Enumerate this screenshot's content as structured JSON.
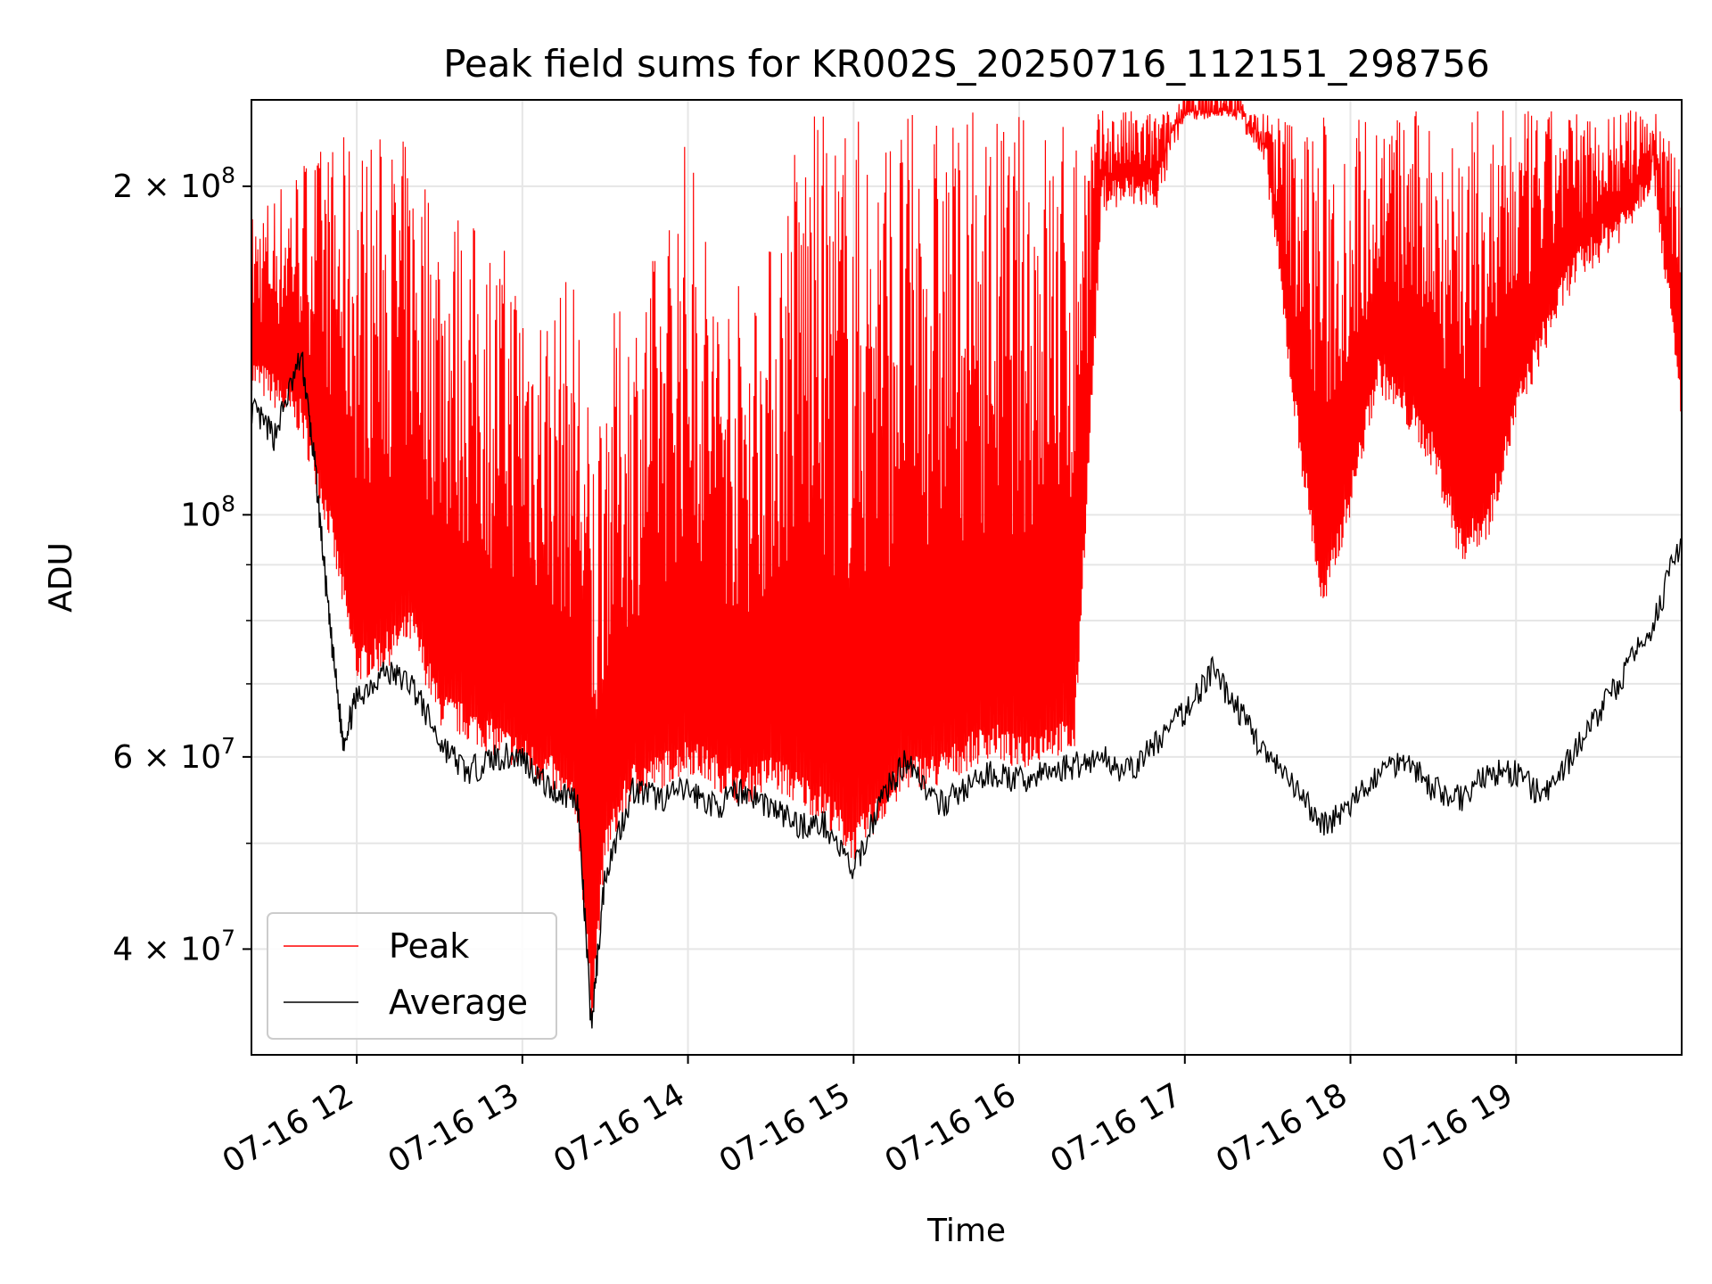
{
  "chart_data": {
    "type": "line",
    "title": "Peak field sums for KR002S_20250716_112151_298756",
    "xlabel": "Time",
    "ylabel": "ADU",
    "y_scale": "log",
    "grid": true,
    "legend_position": "lower-left",
    "xlim": [
      "07-16 11:21:51",
      "07-16 20:00"
    ],
    "ylim": [
      32000000,
      240000000
    ],
    "x_ticks": [
      "07-16 12",
      "07-16 13",
      "07-16 14",
      "07-16 15",
      "07-16 16",
      "07-16 17",
      "07-16 18",
      "07-16 19"
    ],
    "y_ticks": [
      {
        "value": 40000000,
        "mantissa": "4",
        "exp": "7"
      },
      {
        "value": 60000000,
        "mantissa": "6",
        "exp": "7"
      },
      {
        "value": 100000000,
        "mantissa": "",
        "exp": "8"
      },
      {
        "value": 200000000,
        "mantissa": "2",
        "exp": "8"
      }
    ],
    "series": [
      {
        "name": "Peak",
        "color": "#ff0000",
        "x": [
          "11:22",
          "11:30",
          "11:40",
          "11:50",
          "12:00",
          "12:10",
          "12:20",
          "12:30",
          "12:40",
          "12:50",
          "13:00",
          "13:10",
          "13:20",
          "13:25",
          "13:30",
          "13:40",
          "13:50",
          "14:00",
          "14:10",
          "14:20",
          "14:30",
          "14:40",
          "14:50",
          "15:00",
          "15:10",
          "15:20",
          "15:30",
          "15:40",
          "15:50",
          "16:00",
          "16:10",
          "16:20",
          "16:30",
          "16:40",
          "16:50",
          "17:00",
          "17:10",
          "17:20",
          "17:30",
          "17:40",
          "17:50",
          "18:00",
          "18:10",
          "18:20",
          "18:30",
          "18:40",
          "18:50",
          "19:00",
          "19:10",
          "19:20",
          "19:30",
          "19:40",
          "19:50",
          "20:00"
        ],
        "y_low": [
          130000000,
          125000000,
          118000000,
          95000000,
          70000000,
          72000000,
          76000000,
          64000000,
          62000000,
          60000000,
          58000000,
          56000000,
          52000000,
          34000000,
          48000000,
          55000000,
          56000000,
          58000000,
          56000000,
          54000000,
          56000000,
          54000000,
          52000000,
          48000000,
          52000000,
          56000000,
          56000000,
          58000000,
          60000000,
          58000000,
          60000000,
          60000000,
          190000000,
          190000000,
          190000000,
          230000000,
          230000000,
          230000000,
          200000000,
          120000000,
          80000000,
          100000000,
          130000000,
          120000000,
          110000000,
          90000000,
          95000000,
          120000000,
          140000000,
          160000000,
          170000000,
          180000000,
          200000000,
          120000000
        ],
        "y_high": [
          190000000,
          200000000,
          215000000,
          220000000,
          225000000,
          225000000,
          220000000,
          200000000,
          190000000,
          180000000,
          175000000,
          160000000,
          170000000,
          120000000,
          150000000,
          160000000,
          180000000,
          230000000,
          170000000,
          165000000,
          180000000,
          235000000,
          235000000,
          235000000,
          235000000,
          235000000,
          235000000,
          235000000,
          235000000,
          235000000,
          235000000,
          235000000,
          235000000,
          235000000,
          235000000,
          235000000,
          235000000,
          235000000,
          235000000,
          235000000,
          235000000,
          235000000,
          235000000,
          235000000,
          235000000,
          235000000,
          235000000,
          235000000,
          235000000,
          235000000,
          235000000,
          235000000,
          235000000,
          235000000
        ]
      },
      {
        "name": "Average",
        "color": "#000000",
        "x": [
          "11:22",
          "11:30",
          "11:40",
          "11:45",
          "11:50",
          "11:55",
          "12:00",
          "12:10",
          "12:20",
          "12:30",
          "12:40",
          "12:50",
          "13:00",
          "13:10",
          "13:20",
          "13:25",
          "13:30",
          "13:40",
          "13:50",
          "14:00",
          "14:10",
          "14:20",
          "14:30",
          "14:40",
          "14:50",
          "15:00",
          "15:10",
          "15:20",
          "15:30",
          "15:40",
          "15:50",
          "16:00",
          "16:10",
          "16:20",
          "16:30",
          "16:40",
          "16:50",
          "17:00",
          "17:10",
          "17:20",
          "17:30",
          "17:40",
          "17:50",
          "18:00",
          "18:10",
          "18:20",
          "18:30",
          "18:40",
          "18:50",
          "19:00",
          "19:10",
          "19:20",
          "19:30",
          "19:40",
          "19:50",
          "20:00"
        ],
        "y": [
          125000000,
          118000000,
          140000000,
          110000000,
          80000000,
          62000000,
          68000000,
          72000000,
          70000000,
          62000000,
          58000000,
          60000000,
          60000000,
          56000000,
          55000000,
          34000000,
          47000000,
          56000000,
          55000000,
          56000000,
          54000000,
          56000000,
          54000000,
          52000000,
          52000000,
          47000000,
          55000000,
          60000000,
          54000000,
          56000000,
          58000000,
          57000000,
          58000000,
          59000000,
          60000000,
          58000000,
          62000000,
          66000000,
          72000000,
          66000000,
          60000000,
          56000000,
          52000000,
          54000000,
          58000000,
          60000000,
          56000000,
          55000000,
          58000000,
          58000000,
          55000000,
          60000000,
          66000000,
          72000000,
          80000000,
          95000000
        ]
      }
    ]
  }
}
